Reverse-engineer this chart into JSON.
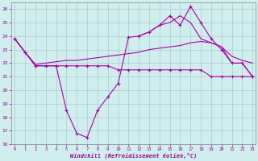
{
  "bg_color": "#d0eeee",
  "line_color": "#aa00aa",
  "grid_color": "#aacccc",
  "ylim": [
    16,
    26.5
  ],
  "xlim": [
    -0.3,
    23.3
  ],
  "yticks": [
    16,
    17,
    18,
    19,
    20,
    21,
    22,
    23,
    24,
    25,
    26
  ],
  "xticks": [
    0,
    1,
    2,
    3,
    4,
    5,
    6,
    7,
    8,
    9,
    10,
    11,
    12,
    13,
    14,
    15,
    16,
    17,
    18,
    19,
    20,
    21,
    22,
    23
  ],
  "xlabel": "Windchill (Refroidissement éolien,°C)",
  "line1_x": [
    0,
    1,
    2,
    3,
    4,
    5,
    6,
    7,
    8,
    9,
    10,
    11,
    12,
    13,
    14,
    15,
    16,
    17,
    18,
    19,
    20,
    21,
    22,
    23
  ],
  "line1_y": [
    23.8,
    22.8,
    21.8,
    21.8,
    21.8,
    21.8,
    21.8,
    21.8,
    21.8,
    21.8,
    21.5,
    21.5,
    21.5,
    21.5,
    21.5,
    21.5,
    21.5,
    21.5,
    21.5,
    21.0,
    21.0,
    21.0,
    21.0,
    21.0
  ],
  "line2_x": [
    0,
    1,
    2,
    3,
    4,
    5,
    6,
    7,
    8,
    9,
    10,
    11,
    12,
    13,
    14,
    15,
    16,
    17,
    18,
    19,
    20,
    21,
    22,
    23
  ],
  "line2_y": [
    23.8,
    22.8,
    21.9,
    22.0,
    22.1,
    22.2,
    22.2,
    22.3,
    22.4,
    22.5,
    22.6,
    22.7,
    22.8,
    23.0,
    23.1,
    23.2,
    23.3,
    23.5,
    23.6,
    23.5,
    23.2,
    22.5,
    22.2,
    22.0
  ],
  "line3_x": [
    0,
    1,
    2,
    3,
    4,
    5,
    6,
    7,
    8,
    9,
    10,
    11,
    12,
    13,
    14,
    15,
    16,
    17,
    18,
    19,
    20,
    21,
    22,
    23
  ],
  "line3_y": [
    23.8,
    22.8,
    21.8,
    21.8,
    21.8,
    18.5,
    16.8,
    16.5,
    18.5,
    19.5,
    20.5,
    23.9,
    24.0,
    24.3,
    24.8,
    25.5,
    24.8,
    26.2,
    25.0,
    23.8,
    23.0,
    22.0,
    22.0,
    21.0
  ],
  "line4_x": [
    12,
    13,
    14,
    15,
    16,
    17,
    18,
    19,
    20,
    21,
    22,
    23
  ],
  "line4_y": [
    24.0,
    24.3,
    24.8,
    25.0,
    25.5,
    25.0,
    23.8,
    23.5,
    23.2,
    22.0,
    22.0,
    21.0
  ]
}
